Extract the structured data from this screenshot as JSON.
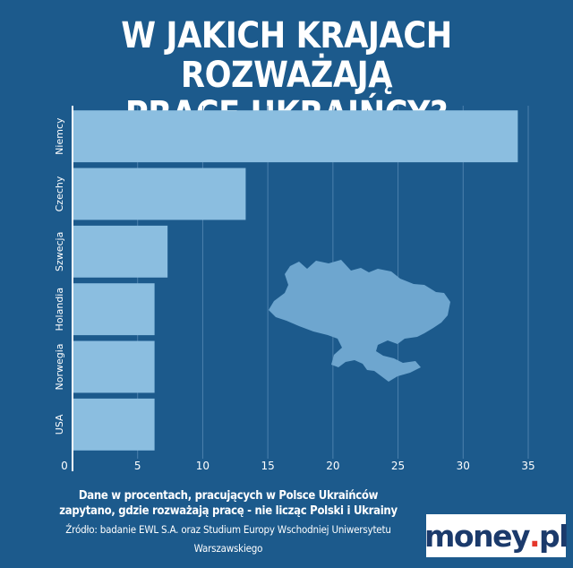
{
  "title_lines": [
    "W JAKICH KRAJACH ROZWAŻAJĄ",
    "PRACĘ UKRAIŃCY?"
  ],
  "chart_data": {
    "type": "bar",
    "orientation": "horizontal",
    "title": "W JAKICH KRAJACH ROZWAŻAJĄ PRACĘ UKRAIŃCY?",
    "categories": [
      "Niemcy",
      "Czechy",
      "Szwecja",
      "Holandia",
      "Norwegia",
      "USA"
    ],
    "values": [
      34.2,
      13.3,
      7.3,
      6.3,
      6.3,
      6.3
    ],
    "xlim": [
      0,
      35
    ],
    "xticks": [
      "0",
      "5",
      "10",
      "15",
      "20",
      "25",
      "30",
      "35"
    ],
    "xlabel": "",
    "ylabel": "",
    "grid": "vertical",
    "bar_color": "#8bbee0",
    "background_color": "#1c5a8c",
    "map_color": "#6ea6cf"
  },
  "footnote": {
    "line1": "Dane w procentach, pracujących w Polsce Ukraińców",
    "line2": "zapytano, gdzie rozważają pracę - nie licząc Polski i Ukrainy",
    "source": "Źródło: badanie EWL S.A. oraz Studium Europy Wschodniej Uniwersytetu Warszawskiego"
  },
  "logo": {
    "part1": "money",
    "part2": ".",
    "part3": "pl"
  }
}
